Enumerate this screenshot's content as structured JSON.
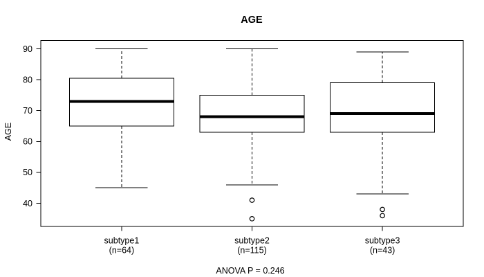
{
  "chart_data": {
    "type": "boxplot",
    "title": "AGE",
    "xlabel": "",
    "ylabel": "AGE",
    "ylim": [
      32.5,
      92.7
    ],
    "yticks": [
      40,
      50,
      60,
      70,
      80,
      90
    ],
    "grid": false,
    "categories": [
      "subtype1",
      "subtype2",
      "subtype3"
    ],
    "category_sublabels": [
      "(n=64)",
      "(n=115)",
      "(n=43)"
    ],
    "annotation": "ANOVA P = 0.246",
    "series": [
      {
        "name": "subtype1",
        "n": 64,
        "whisker_low": 45,
        "q1": 65,
        "median": 73,
        "q3": 80.5,
        "whisker_high": 90,
        "outliers": []
      },
      {
        "name": "subtype2",
        "n": 115,
        "whisker_low": 46,
        "q1": 63,
        "median": 68,
        "q3": 75,
        "whisker_high": 90,
        "outliers": [
          41,
          35
        ]
      },
      {
        "name": "subtype3",
        "n": 43,
        "whisker_low": 43,
        "q1": 63,
        "median": 69,
        "q3": 79,
        "whisker_high": 89,
        "outliers": [
          38,
          36
        ]
      }
    ],
    "colors": {
      "line": "#000000",
      "box_fill": "#ffffff",
      "background": "#ffffff"
    }
  }
}
